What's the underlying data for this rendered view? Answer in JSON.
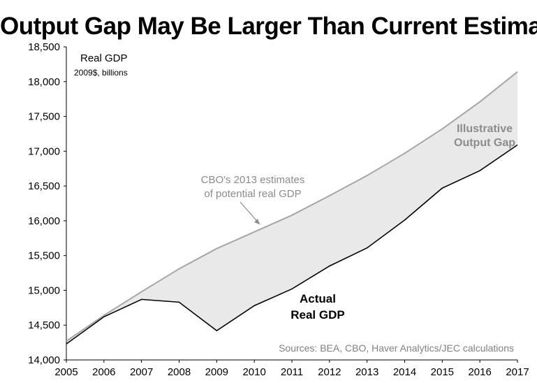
{
  "chart_data": {
    "type": "area",
    "title": "Output Gap May Be Larger Than Current Estimates",
    "ylabel": "Real GDP",
    "ylabel_units": "2009$, billions",
    "xlabel": "",
    "x": [
      2005,
      2006,
      2007,
      2008,
      2009,
      2010,
      2011,
      2012,
      2013,
      2014,
      2015,
      2016,
      2017
    ],
    "xlim": [
      2005,
      2017
    ],
    "ylim": [
      14000,
      18500
    ],
    "x_ticks": [
      "2005",
      "2006",
      "2007",
      "2008",
      "2009",
      "2010",
      "2011",
      "2012",
      "2013",
      "2014",
      "2015",
      "2016",
      "2017"
    ],
    "y_ticks": [
      "14,000",
      "14,500",
      "15,000",
      "15,500",
      "16,000",
      "16,500",
      "17,000",
      "17,500",
      "18,000",
      "18,500"
    ],
    "y_tick_values": [
      14000,
      14500,
      15000,
      15500,
      16000,
      16500,
      17000,
      17500,
      18000,
      18500
    ],
    "grid": false,
    "series": [
      {
        "name": "CBO's 2013 estimates of potential real GDP",
        "color": "#a6a6a6",
        "values": [
          14270,
          14640,
          14980,
          15310,
          15600,
          15840,
          16080,
          16360,
          16650,
          16970,
          17320,
          17710,
          18140
        ]
      },
      {
        "name": "Actual Real GDP",
        "color": "#000000",
        "values": [
          14230,
          14620,
          14870,
          14830,
          14420,
          14780,
          15020,
          15350,
          15610,
          16010,
          16470,
          16720,
          17090
        ]
      }
    ],
    "shaded_region": {
      "label": "Illustrative Output Gap",
      "color": "#e9e9e9"
    },
    "annotations": {
      "potential_label": [
        "CBO's 2013 estimates",
        "of potential real GDP"
      ],
      "actual_label": [
        "Actual",
        "Real GDP"
      ],
      "gap_label": [
        "Illustrative",
        "Output Gap"
      ],
      "source": "Sources: BEA, CBO, Haver Analytics/JEC calculations"
    },
    "colors": {
      "potential": "#a6a6a6",
      "actual": "#000000",
      "gap_fill": "#e9e9e9",
      "gap_label": "#8c8c8c",
      "potential_label": "#8c8c8c",
      "source": "#808080"
    }
  }
}
